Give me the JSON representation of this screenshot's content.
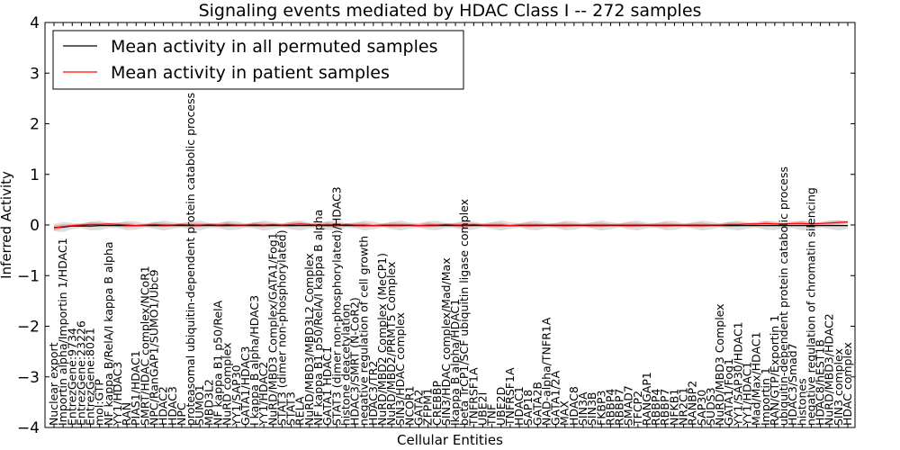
{
  "chart_data": {
    "type": "line",
    "title": "Signaling events mediated by HDAC Class I -- 272 samples",
    "xlabel": "Cellular Entities",
    "ylabel": "Inferred Activity",
    "ylim": [
      -4,
      4
    ],
    "yticks": [
      "4",
      "3",
      "2",
      "1",
      "0",
      "−1",
      "−2",
      "−3",
      "−4"
    ],
    "ytick_values": [
      4,
      3,
      2,
      1,
      0,
      -1,
      -2,
      -3,
      -4
    ],
    "legend": {
      "placement": "top-left",
      "entries": [
        {
          "name": "Mean activity in all permuted samples",
          "color": "#000000"
        },
        {
          "name": "Mean activity in patient samples",
          "color": "#ff0000"
        }
      ]
    },
    "categories": [
      "Nuclear export",
      "Importin alpha/Importin 1/HDAC1",
      "EntrezGene:9734",
      "EntrezGene:23226",
      "EntrezGene:8021",
      "mol:GTP",
      "NF kappa B/RelA/I kappa B alpha",
      "YY1/HDAC3",
      "RAN",
      "PIAS1/HDAC1",
      "SMRT/HDAC complex/NCoR1",
      "NPC/RanGAP1/SUMO1/Ubc9",
      "HDAC2",
      "HDAC3",
      "NPC",
      "proteasomal ubiquitin-dependent protein catabolic process",
      "SUMO1",
      "MBD3L2",
      "NF kappa B1 p50/RelA",
      "NuRD complex",
      "YY1/SAP30",
      "GATA1/HDAC3",
      "I kappa B alpha/HDAC3",
      "YY1/HDAC2",
      "NuRD/MBD3 Complex/GATA1/Fog1",
      "STAT3 (dimer non-phosphorylated)",
      "STAT3",
      "RELA",
      "NuRD/MBD3/MBD3L2 Complex",
      "NF kappa B1 p50/RelA/I kappa B alpha",
      "GATA1 HDAC1",
      "STAT3 (dimer non-phosphorylated)/HDAC3",
      "histone deacetylation",
      "HDAC3/SMRT (N-CoR2)",
      "negative regulation of cell growth",
      "HDAC3/TR2",
      "NuRD/MBD2 Complex (MeCP1)",
      "NuRD/MBD2/PRMT5 Complex",
      "SIN3/HDAC complex",
      "NCOR1",
      "GATA2",
      "ZFPM1",
      "CREBBP",
      "SIN3/HDAC complex/Mad/Max",
      "Ikappa B alpha/HDAC1",
      "beta TrCP1/SCF ubiquitin ligase complex",
      "TNFRSF1A",
      "UBE2I",
      "TNF",
      "UBE2D",
      "TNFRSF1A",
      "HDAC1",
      "SAP18",
      "GATA2B",
      "NAD-alpha/TNFR1A",
      "GATA1/2A",
      "MAX",
      "HDAC8",
      "SIN3A",
      "SIN3B",
      "FKBP3",
      "RBBP4",
      "RBBP7",
      "SMAD7",
      "TFCP2",
      "RANGAP1",
      "RBBP4",
      "RBBP7",
      "NFKB1",
      "NR2C1",
      "RANBP2",
      "SAP30",
      "SUDS3",
      "NuRD/MBD3 Complex",
      "GATA1/Fog1",
      "YY1/SAP30/HDAC1",
      "YY1/HDAC1",
      "Mad/Max/HDAC1",
      "Importin 1",
      "RAN/GTP/Exportin 1",
      "ubiquitin-dependent protein catabolic process",
      "HDAC3/Smad7",
      "histones",
      "negative regulation of chromatin silencing",
      "HDAC8/hEST1B",
      "NuRD/MBD3/HDAC2",
      "SIN3 complex",
      "HDAC complex"
    ],
    "series": [
      {
        "name": "Mean activity in all permuted samples",
        "color": "#000000",
        "values": [
          -0.05,
          -0.04,
          -0.02,
          -0.02,
          -0.02,
          -0.01,
          -0.01,
          -0.01,
          -0.01,
          -0.01,
          -0.01,
          -0.01,
          -0.01,
          -0.01,
          -0.01,
          -0.01,
          -0.01,
          -0.01,
          -0.01,
          -0.01,
          -0.01,
          -0.01,
          -0.01,
          -0.01,
          -0.01,
          -0.01,
          -0.01,
          -0.01,
          -0.01,
          -0.01,
          -0.01,
          -0.01,
          -0.01,
          -0.01,
          -0.01,
          -0.01,
          -0.01,
          -0.01,
          -0.01,
          -0.01,
          -0.01,
          -0.01,
          -0.01,
          -0.01,
          -0.01,
          -0.01,
          -0.01,
          -0.01,
          -0.01,
          -0.01,
          -0.01,
          -0.01,
          -0.01,
          -0.01,
          -0.01,
          -0.01,
          -0.01,
          -0.01,
          -0.01,
          -0.01,
          -0.01,
          -0.01,
          -0.01,
          -0.01,
          -0.01,
          -0.01,
          -0.01,
          -0.01,
          -0.01,
          -0.01,
          -0.01,
          -0.01,
          -0.01,
          -0.01,
          -0.01,
          -0.01,
          -0.01,
          -0.01,
          -0.01,
          -0.01,
          -0.01,
          -0.01,
          -0.01,
          -0.01,
          -0.01,
          -0.01,
          -0.01,
          -0.01
        ],
        "spread": 0.1
      },
      {
        "name": "Mean activity in patient samples",
        "color": "#ff0000",
        "values": [
          -0.06,
          -0.03,
          -0.01,
          0.0,
          0.01,
          0.01,
          0.02,
          0.01,
          0.0,
          -0.01,
          0.0,
          0.01,
          0.0,
          0.0,
          0.01,
          0.0,
          0.0,
          0.01,
          0.0,
          0.01,
          0.0,
          0.0,
          0.01,
          0.0,
          0.01,
          0.0,
          0.01,
          0.02,
          0.01,
          0.0,
          0.01,
          0.0,
          0.01,
          0.0,
          0.0,
          -0.01,
          0.0,
          0.0,
          0.0,
          0.0,
          -0.01,
          0.0,
          0.0,
          0.01,
          0.0,
          0.0,
          0.01,
          0.0,
          0.0,
          0.0,
          -0.01,
          0.0,
          0.0,
          0.0,
          0.0,
          0.0,
          0.0,
          0.0,
          0.0,
          0.0,
          0.0,
          0.0,
          0.0,
          0.0,
          0.0,
          0.0,
          0.0,
          0.0,
          0.0,
          0.0,
          0.0,
          0.0,
          0.0,
          0.0,
          0.01,
          0.01,
          0.02,
          0.02,
          0.03,
          0.02,
          0.02,
          0.03,
          0.03,
          0.02,
          0.03,
          0.04,
          0.05,
          0.06
        ],
        "spread": 0.05
      }
    ]
  }
}
